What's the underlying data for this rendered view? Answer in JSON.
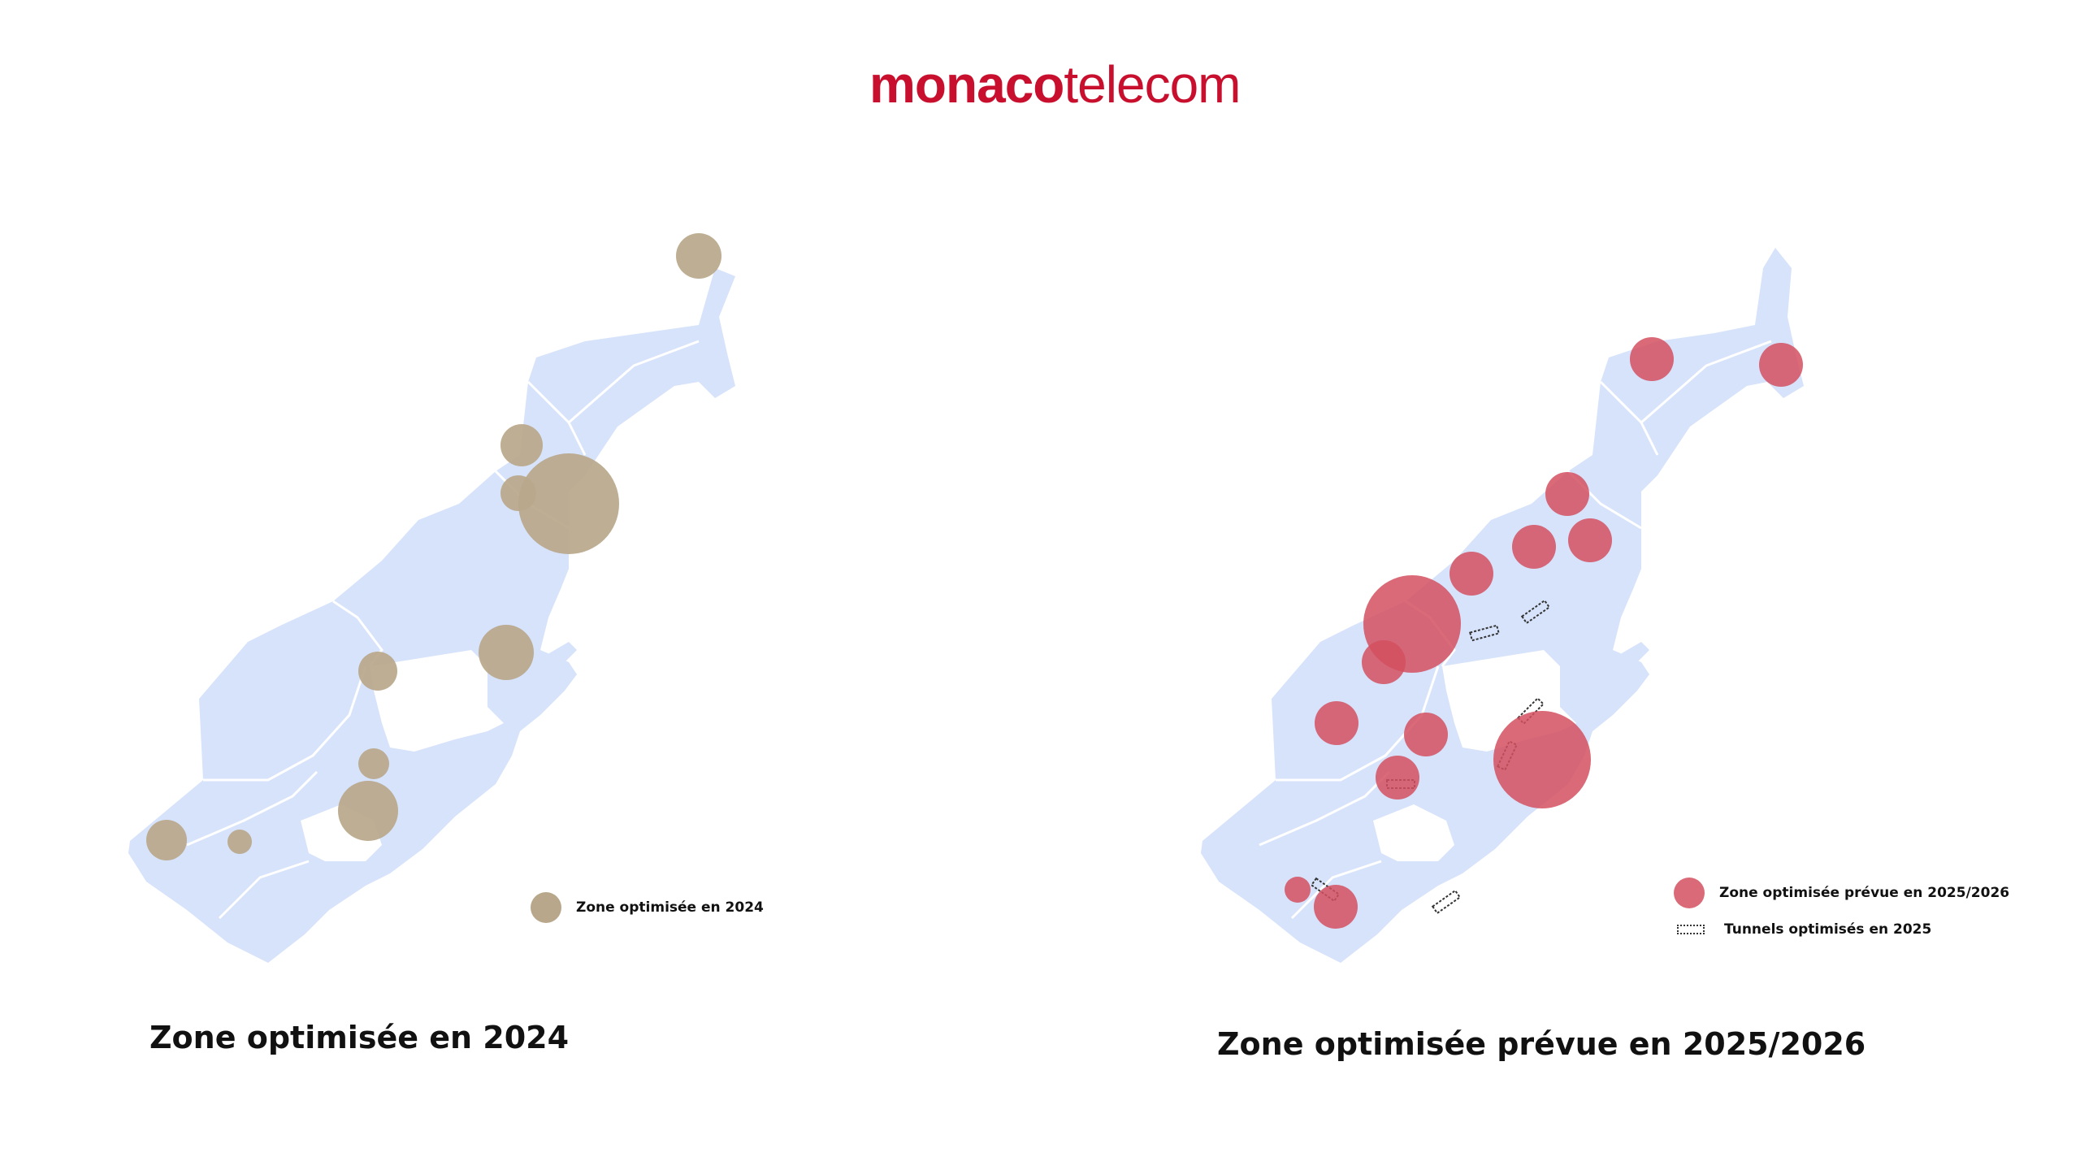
{
  "logo": {
    "part1": "monaco",
    "part2": "telecom"
  },
  "colors": {
    "land": "#d6e3fb",
    "coast": "#ffffff",
    "zone2024": "#b8a78a",
    "zone2025": "#d4505f",
    "brand": "#c8102e"
  },
  "left_map": {
    "caption": "Zone optimisée en 2024",
    "legend_label": "Zone optimisée en 2024"
  },
  "right_map": {
    "caption": "Zone optimisée prévue en 2025/2026",
    "legend_zone_label": "Zone optimisée prévue en 2025/2026",
    "legend_tunnel_label": "Tunnels optimisés en 2025"
  }
}
